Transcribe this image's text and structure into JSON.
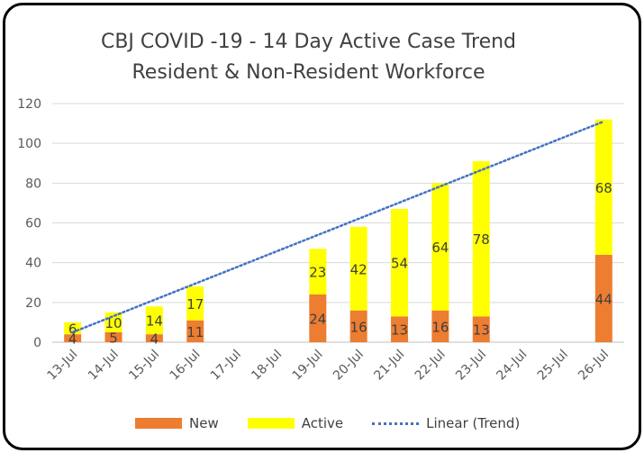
{
  "chart_data": {
    "type": "bar",
    "stacked": true,
    "title": "CBJ COVID -19 - 14 Day Active Case Trend",
    "subtitle": "Resident & Non-Resident Workforce",
    "categories": [
      "13-Jul",
      "14-Jul",
      "15-Jul",
      "16-Jul",
      "17-Jul",
      "18-Jul",
      "19-Jul",
      "20-Jul",
      "21-Jul",
      "22-Jul",
      "23-Jul",
      "24-Jul",
      "25-Jul",
      "26-Jul"
    ],
    "series": [
      {
        "name": "New",
        "color": "#ed7d31",
        "values": [
          4,
          5,
          4,
          11,
          null,
          null,
          24,
          16,
          13,
          16,
          13,
          null,
          null,
          44
        ]
      },
      {
        "name": "Active",
        "color": "#ffff00",
        "values": [
          6,
          10,
          14,
          17,
          null,
          null,
          23,
          42,
          54,
          64,
          78,
          null,
          null,
          68
        ]
      }
    ],
    "trendline": {
      "name": "Linear (Trend)",
      "color": "#4472c4",
      "start": 5,
      "end": 111
    },
    "ylim": [
      0,
      120
    ],
    "yticks": [
      0,
      20,
      40,
      60,
      80,
      100,
      120
    ],
    "grid": true,
    "legend_position": "bottom"
  }
}
